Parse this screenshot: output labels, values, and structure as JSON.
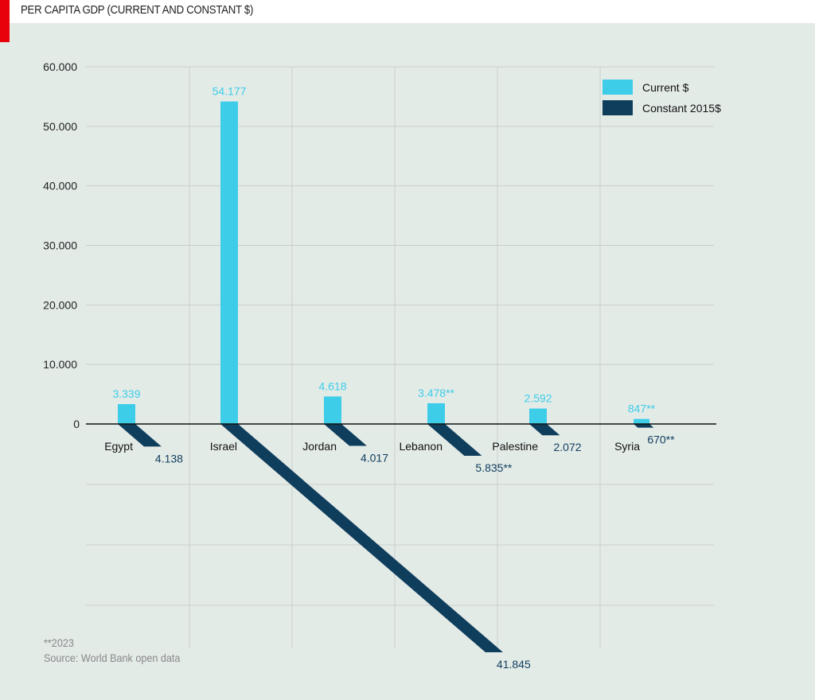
{
  "header": {
    "title": "PER CAPITA GDP (CURRENT AND CONSTANT $)"
  },
  "footer": {
    "note": "**2023",
    "source": "Source: World Bank open data"
  },
  "colors": {
    "current": "#3dcde8",
    "constant": "#0f3d5c",
    "grid": "#c8cfcc",
    "accent": "#e8000b"
  },
  "chart_data": {
    "type": "bar",
    "title": "PER CAPITA GDP (CURRENT AND CONSTANT $)",
    "categories": [
      "Egypt",
      "Israel",
      "Jordan",
      "Lebanon",
      "Palestine",
      "Syria"
    ],
    "yticks": [
      0,
      10000,
      20000,
      30000,
      40000,
      50000,
      60000
    ],
    "ytick_labels": [
      "0",
      "10.000",
      "20.000",
      "30.000",
      "40.000",
      "50.000",
      "60.000"
    ],
    "ylim": [
      0,
      60000
    ],
    "legend": {
      "placement": "top-right",
      "entries": [
        "Current $",
        "Constant 2015$"
      ]
    },
    "series": [
      {
        "name": "Current $",
        "values": [
          3339,
          54177,
          4618,
          3478,
          2592,
          847
        ],
        "labels": [
          "3.339",
          "54.177",
          "4.618",
          "3.478**",
          "2.592",
          "847**"
        ]
      },
      {
        "name": "Constant 2015$",
        "values": [
          4138,
          41845,
          4017,
          5835,
          2072,
          670
        ],
        "labels": [
          "4.138",
          "41.845",
          "4.017",
          "5.835**",
          "2.072",
          "670**"
        ]
      }
    ]
  }
}
